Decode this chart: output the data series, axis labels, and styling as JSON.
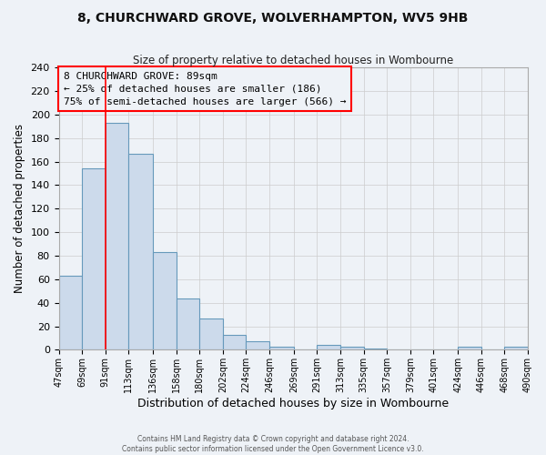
{
  "title_line1": "8, CHURCHWARD GROVE, WOLVERHAMPTON, WV5 9HB",
  "title_line2": "Size of property relative to detached houses in Wombourne",
  "xlabel": "Distribution of detached houses by size in Wombourne",
  "ylabel": "Number of detached properties",
  "bar_left_edges": [
    47,
    69,
    91,
    113,
    136,
    158,
    180,
    202,
    224,
    246,
    269,
    291,
    313,
    335,
    357,
    379,
    401,
    424,
    446,
    468
  ],
  "bar_widths": [
    22,
    22,
    22,
    23,
    22,
    22,
    22,
    22,
    22,
    23,
    22,
    22,
    22,
    22,
    22,
    22,
    23,
    22,
    22,
    22
  ],
  "bar_heights": [
    63,
    154,
    193,
    167,
    83,
    44,
    27,
    13,
    7,
    3,
    0,
    4,
    3,
    1,
    0,
    0,
    0,
    3,
    0,
    3
  ],
  "bar_color": "#ccdaeb",
  "bar_edge_color": "#6699bb",
  "x_tick_labels": [
    "47sqm",
    "69sqm",
    "91sqm",
    "113sqm",
    "136sqm",
    "158sqm",
    "180sqm",
    "202sqm",
    "224sqm",
    "246sqm",
    "269sqm",
    "291sqm",
    "313sqm",
    "335sqm",
    "357sqm",
    "379sqm",
    "401sqm",
    "424sqm",
    "446sqm",
    "468sqm",
    "490sqm"
  ],
  "ylim": [
    0,
    240
  ],
  "yticks": [
    0,
    20,
    40,
    60,
    80,
    100,
    120,
    140,
    160,
    180,
    200,
    220,
    240
  ],
  "property_line_x": 91,
  "annotation_title": "8 CHURCHWARD GROVE: 89sqm",
  "annotation_line1": "← 25% of detached houses are smaller (186)",
  "annotation_line2": "75% of semi-detached houses are larger (566) →",
  "grid_color": "#cccccc",
  "background_color": "#eef2f7",
  "footer_line1": "Contains HM Land Registry data © Crown copyright and database right 2024.",
  "footer_line2": "Contains public sector information licensed under the Open Government Licence v3.0."
}
